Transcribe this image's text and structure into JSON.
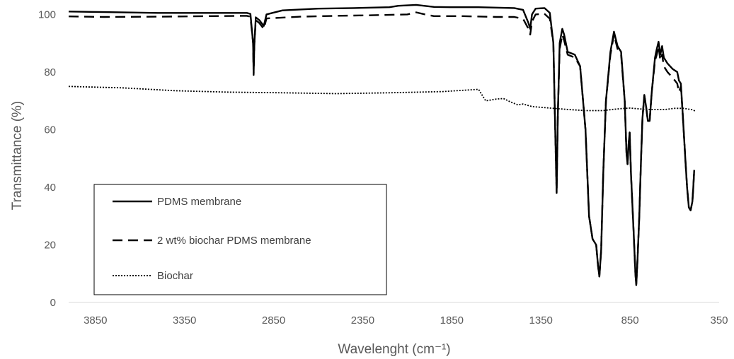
{
  "chart_data": {
    "type": "line",
    "title": "",
    "xlabel": "Wavelenght  (cm⁻¹)",
    "ylabel": "Transmittance  (%)",
    "xlim": [
      4000,
      350
    ],
    "ylim": [
      0,
      105
    ],
    "x_reversed": true,
    "x_ticks": [
      3850,
      3350,
      2850,
      2350,
      1850,
      1350,
      850,
      350
    ],
    "y_ticks": [
      0,
      20,
      40,
      60,
      80,
      100
    ],
    "grid": false,
    "legend_position": "bottom-left",
    "series": [
      {
        "name": "PDMS membrane",
        "style": "solid",
        "color": "#000000",
        "points": [
          [
            4000,
            101
          ],
          [
            3800,
            100.8
          ],
          [
            3500,
            100.5
          ],
          [
            3200,
            100.5
          ],
          [
            3000,
            100.5
          ],
          [
            2980,
            100.2
          ],
          [
            2965,
            90
          ],
          [
            2962,
            79
          ],
          [
            2958,
            90
          ],
          [
            2950,
            99
          ],
          [
            2930,
            98
          ],
          [
            2905,
            96
          ],
          [
            2890,
            100
          ],
          [
            2800,
            101.4
          ],
          [
            2600,
            102
          ],
          [
            2400,
            102.2
          ],
          [
            2200,
            102.5
          ],
          [
            2150,
            103
          ],
          [
            2050,
            103.3
          ],
          [
            1950,
            102.6
          ],
          [
            1850,
            102.5
          ],
          [
            1700,
            102.5
          ],
          [
            1500,
            102.2
          ],
          [
            1450,
            101.6
          ],
          [
            1420,
            97
          ],
          [
            1410,
            95
          ],
          [
            1400,
            100
          ],
          [
            1380,
            102
          ],
          [
            1330,
            102.2
          ],
          [
            1300,
            100.5
          ],
          [
            1280,
            90
          ],
          [
            1270,
            60
          ],
          [
            1262,
            38
          ],
          [
            1255,
            65
          ],
          [
            1245,
            90
          ],
          [
            1230,
            95
          ],
          [
            1220,
            93
          ],
          [
            1200,
            87
          ],
          [
            1160,
            86
          ],
          [
            1130,
            82
          ],
          [
            1100,
            60
          ],
          [
            1080,
            30
          ],
          [
            1060,
            22
          ],
          [
            1040,
            20
          ],
          [
            1030,
            13
          ],
          [
            1022,
            9
          ],
          [
            1012,
            18
          ],
          [
            1000,
            45
          ],
          [
            985,
            70
          ],
          [
            960,
            87
          ],
          [
            940,
            94
          ],
          [
            920,
            89
          ],
          [
            900,
            87
          ],
          [
            880,
            70
          ],
          [
            870,
            52
          ],
          [
            864,
            48
          ],
          [
            858,
            55
          ],
          [
            852,
            59
          ],
          [
            845,
            45
          ],
          [
            830,
            25
          ],
          [
            820,
            10
          ],
          [
            815,
            6
          ],
          [
            808,
            15
          ],
          [
            798,
            30
          ],
          [
            788,
            50
          ],
          [
            780,
            64
          ],
          [
            770,
            72
          ],
          [
            760,
            68
          ],
          [
            750,
            63
          ],
          [
            740,
            63
          ],
          [
            728,
            73
          ],
          [
            710,
            85
          ],
          [
            700,
            88
          ],
          [
            690,
            90.5
          ],
          [
            680,
            86
          ],
          [
            670,
            89
          ],
          [
            660,
            85
          ],
          [
            640,
            83
          ],
          [
            610,
            81
          ],
          [
            585,
            80
          ],
          [
            575,
            77
          ],
          [
            565,
            76
          ],
          [
            555,
            66
          ],
          [
            540,
            50
          ],
          [
            530,
            40
          ],
          [
            520,
            33
          ],
          [
            510,
            32
          ],
          [
            500,
            35
          ],
          [
            495,
            40
          ],
          [
            490,
            46
          ]
        ]
      },
      {
        "name": "2 wt% biochar PDMS membrane",
        "style": "dashed",
        "color": "#000000",
        "points": [
          [
            4000,
            99.3
          ],
          [
            3800,
            99.1
          ],
          [
            3500,
            99.2
          ],
          [
            3200,
            99.4
          ],
          [
            3000,
            99.5
          ],
          [
            2980,
            99.2
          ],
          [
            2965,
            90
          ],
          [
            2962,
            79
          ],
          [
            2958,
            90
          ],
          [
            2950,
            98
          ],
          [
            2930,
            97
          ],
          [
            2905,
            95
          ],
          [
            2890,
            98.6
          ],
          [
            2700,
            99.2
          ],
          [
            2500,
            99.5
          ],
          [
            2300,
            99.7
          ],
          [
            2100,
            100
          ],
          [
            2050,
            100.7
          ],
          [
            2000,
            100
          ],
          [
            1950,
            99.4
          ],
          [
            1800,
            99.4
          ],
          [
            1600,
            99.1
          ],
          [
            1500,
            99.1
          ],
          [
            1450,
            98.5
          ],
          [
            1420,
            95
          ],
          [
            1410,
            93
          ],
          [
            1400,
            97.5
          ],
          [
            1380,
            100
          ],
          [
            1330,
            100.2
          ],
          [
            1300,
            98.5
          ],
          [
            1280,
            90
          ],
          [
            1270,
            60
          ],
          [
            1262,
            38
          ],
          [
            1255,
            65
          ],
          [
            1245,
            88
          ],
          [
            1230,
            93
          ],
          [
            1220,
            91
          ],
          [
            1200,
            86
          ],
          [
            1160,
            85
          ],
          [
            1130,
            82
          ],
          [
            1100,
            60
          ],
          [
            1080,
            30
          ],
          [
            1060,
            22
          ],
          [
            1040,
            20
          ],
          [
            1030,
            13
          ],
          [
            1022,
            9
          ],
          [
            1012,
            18
          ],
          [
            1000,
            45
          ],
          [
            985,
            70
          ],
          [
            960,
            86
          ],
          [
            940,
            93
          ],
          [
            920,
            88
          ],
          [
            900,
            86
          ],
          [
            880,
            70
          ],
          [
            870,
            52
          ],
          [
            864,
            48
          ],
          [
            858,
            55
          ],
          [
            852,
            59
          ],
          [
            845,
            45
          ],
          [
            830,
            25
          ],
          [
            820,
            10
          ],
          [
            815,
            6
          ],
          [
            808,
            15
          ],
          [
            798,
            30
          ],
          [
            788,
            50
          ],
          [
            780,
            64
          ],
          [
            770,
            72
          ],
          [
            760,
            68
          ],
          [
            750,
            63
          ],
          [
            740,
            63
          ],
          [
            728,
            73
          ],
          [
            710,
            84
          ],
          [
            700,
            86
          ],
          [
            690,
            89
          ],
          [
            680,
            84
          ],
          [
            670,
            86
          ],
          [
            660,
            82
          ],
          [
            640,
            80
          ],
          [
            610,
            78
          ],
          [
            585,
            76
          ],
          [
            575,
            73
          ],
          [
            565,
            75
          ],
          [
            555,
            66
          ],
          [
            540,
            50
          ],
          [
            530,
            40
          ],
          [
            520,
            33
          ],
          [
            510,
            32
          ],
          [
            500,
            35
          ],
          [
            495,
            40
          ],
          [
            490,
            46
          ]
        ]
      },
      {
        "name": "Biochar",
        "style": "dotted",
        "color": "#000000",
        "points": [
          [
            4000,
            75
          ],
          [
            3700,
            74.5
          ],
          [
            3400,
            73.5
          ],
          [
            3100,
            73
          ],
          [
            2800,
            72.8
          ],
          [
            2500,
            72.5
          ],
          [
            2200,
            72.8
          ],
          [
            1900,
            73.2
          ],
          [
            1750,
            73.8
          ],
          [
            1700,
            74
          ],
          [
            1680,
            72
          ],
          [
            1660,
            70
          ],
          [
            1600,
            70.6
          ],
          [
            1560,
            70.8
          ],
          [
            1520,
            69.6
          ],
          [
            1480,
            68.6
          ],
          [
            1450,
            68.9
          ],
          [
            1400,
            68
          ],
          [
            1300,
            67.5
          ],
          [
            1200,
            67
          ],
          [
            1100,
            66.6
          ],
          [
            1000,
            66.6
          ],
          [
            950,
            67
          ],
          [
            900,
            67.3
          ],
          [
            850,
            67.5
          ],
          [
            800,
            67.2
          ],
          [
            750,
            67
          ],
          [
            700,
            67
          ],
          [
            650,
            67
          ],
          [
            600,
            67.4
          ],
          [
            550,
            67.4
          ],
          [
            500,
            66.9
          ],
          [
            480,
            66.3
          ]
        ]
      }
    ]
  }
}
